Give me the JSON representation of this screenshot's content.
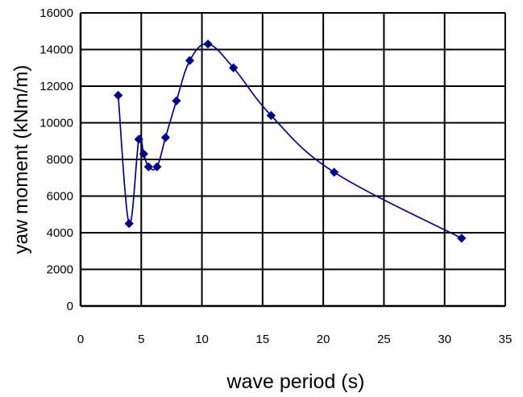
{
  "chart_data": {
    "type": "line",
    "xlabel": "wave period (s)",
    "ylabel": "yaw moment (kNm/m)",
    "xlim": [
      0,
      35
    ],
    "ylim": [
      0,
      16000
    ],
    "x_ticks": [
      0,
      5,
      10,
      15,
      20,
      25,
      30,
      35
    ],
    "y_ticks": [
      0,
      2000,
      4000,
      6000,
      8000,
      10000,
      12000,
      14000,
      16000
    ],
    "grid": "horizontal and vertical",
    "legend": "none",
    "series": [
      {
        "x": [
          3.1,
          4.0,
          4.8,
          5.2,
          5.6,
          6.3,
          7.0,
          7.9,
          9.0,
          10.5,
          12.6,
          15.7,
          20.9,
          31.4
        ],
        "y": [
          11500,
          4500,
          9100,
          8300,
          7600,
          7600,
          9200,
          11200,
          13400,
          14300,
          13000,
          10400,
          7300,
          3700
        ],
        "color": "#00008b",
        "marker": "diamond"
      }
    ]
  }
}
